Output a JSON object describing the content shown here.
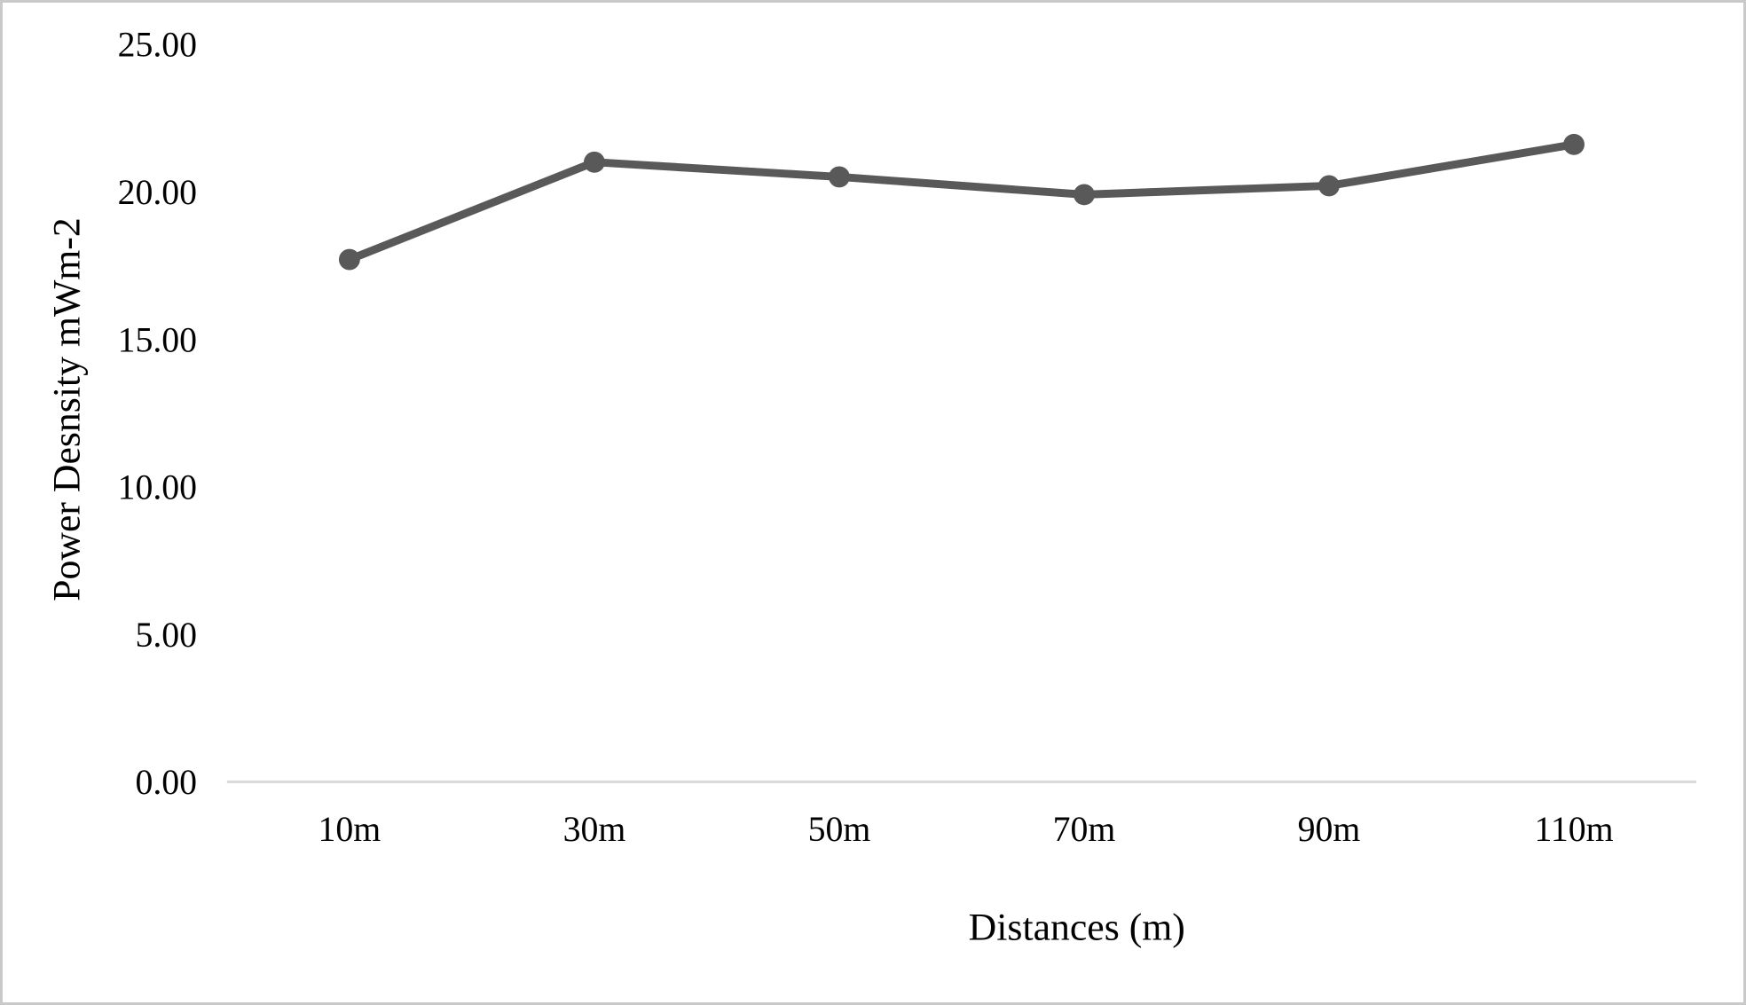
{
  "frame": {
    "background_color": "#ffffff",
    "border_color": "#c9c9c9"
  },
  "chart_data": {
    "type": "line",
    "categories": [
      "10m",
      "30m",
      "50m",
      "70m",
      "90m",
      "110m"
    ],
    "values": [
      17.7,
      21.0,
      20.5,
      19.9,
      20.2,
      21.6
    ],
    "title": "",
    "xlabel": "Distances (m)",
    "ylabel": "Power Desnsity mWm-2",
    "ylim": [
      0,
      25
    ],
    "ytick_step": 5,
    "ytick_labels": [
      "0.00",
      "5.00",
      "10.00",
      "15.00",
      "20.00",
      "25.00"
    ],
    "grid": false,
    "legend": "none",
    "line_color": "#595959",
    "marker_color": "#595959",
    "axis_line_color": "#d9d9d9",
    "text_color": "#000000"
  }
}
